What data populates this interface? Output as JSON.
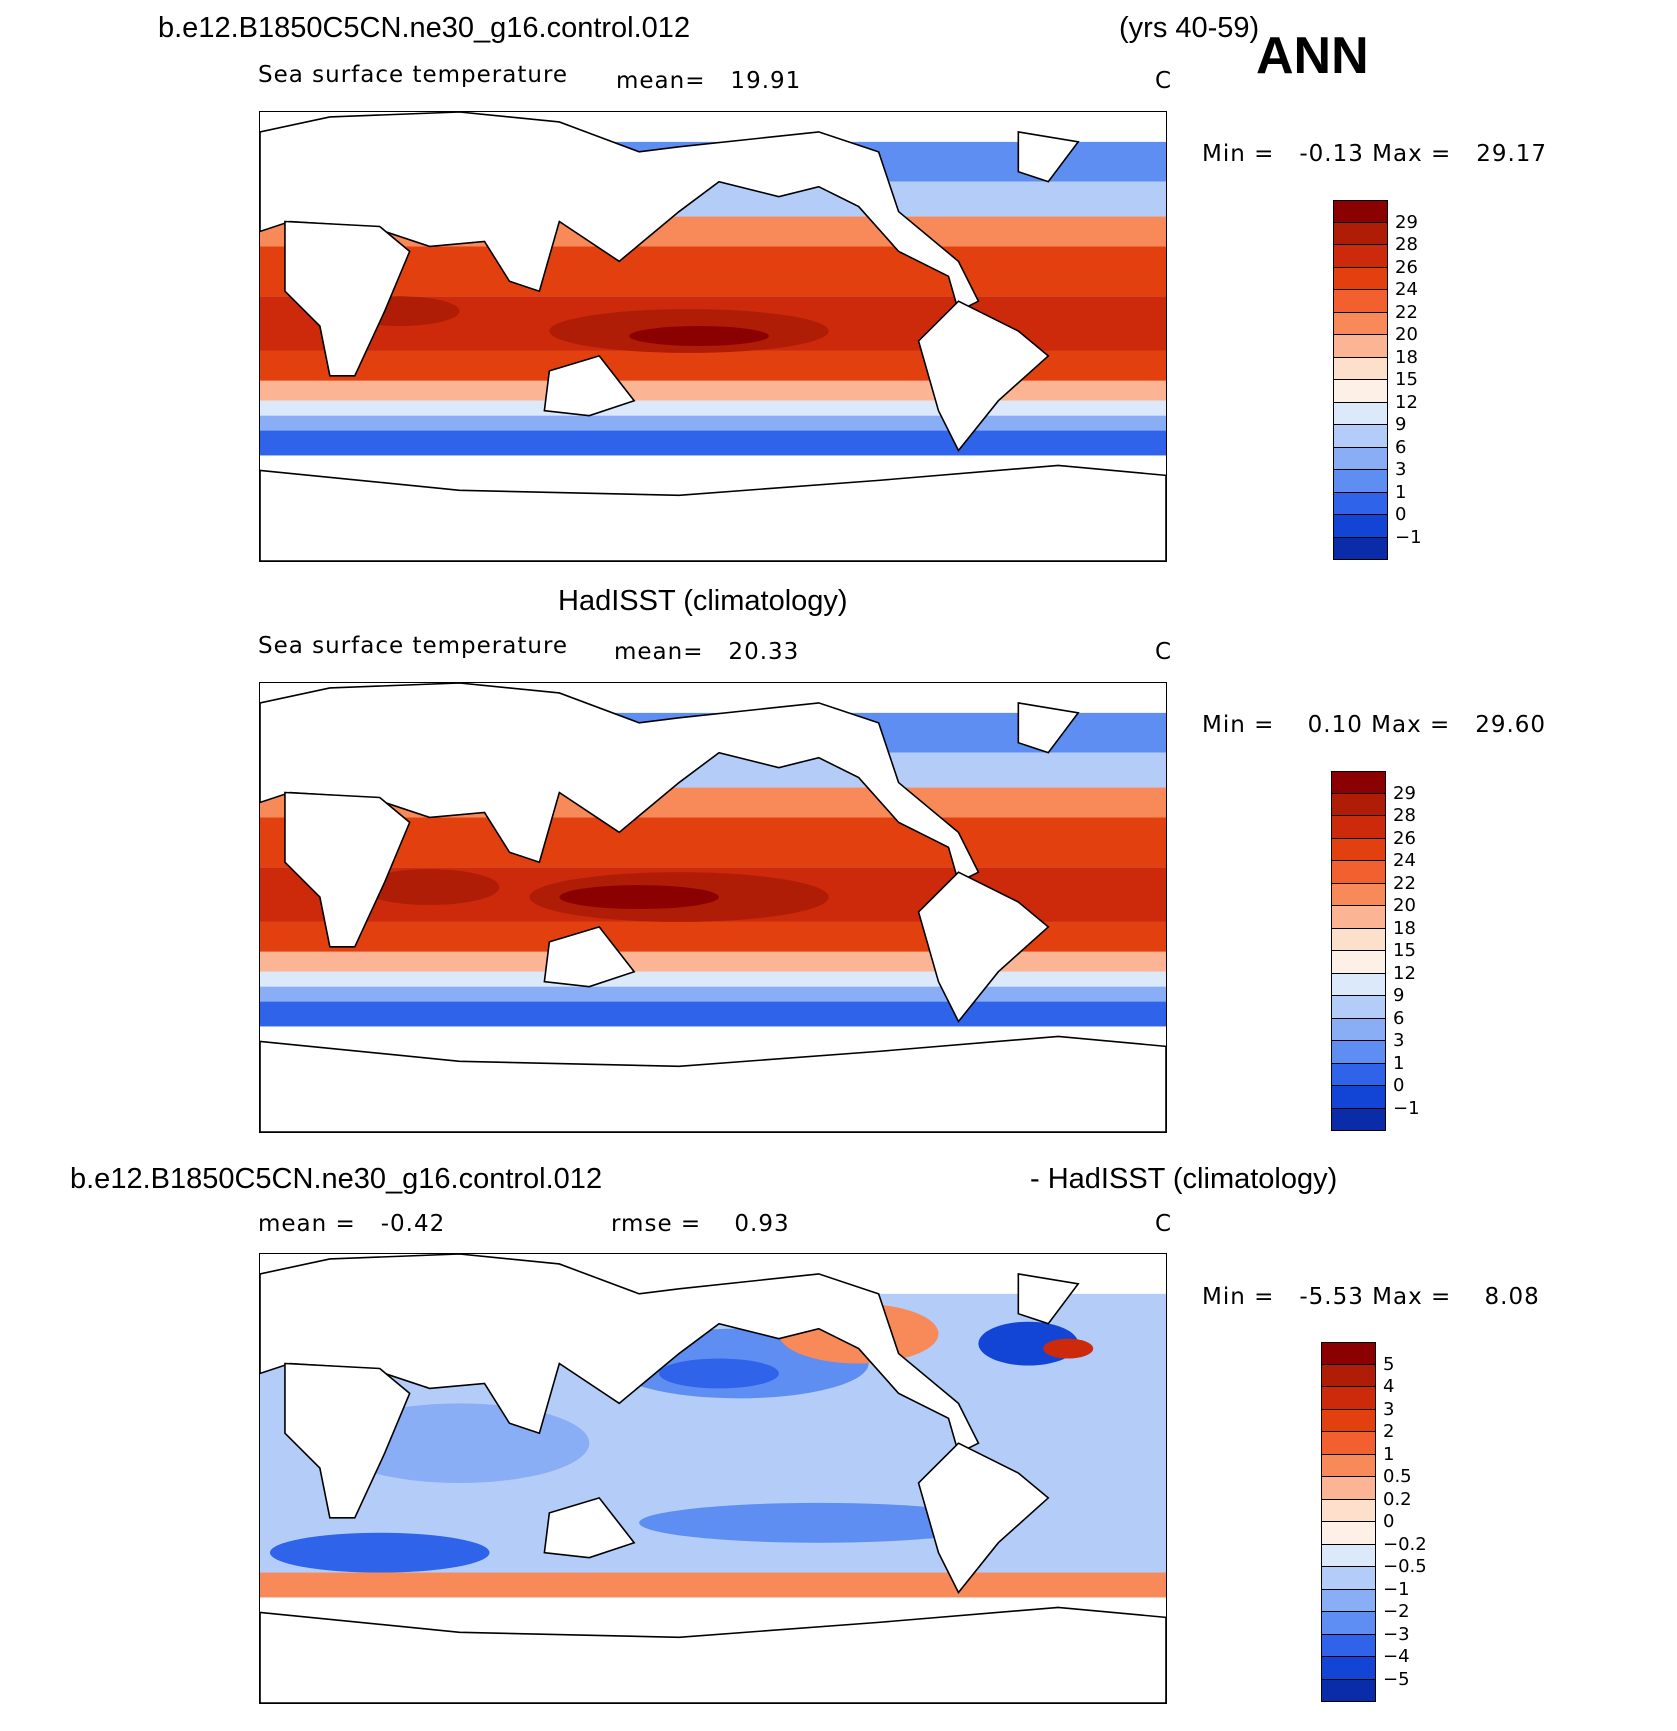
{
  "header": {
    "case_name": "b.e12.B1850C5CN.ne30_g16.control.012",
    "years": "(yrs 40-59)",
    "season": "ANN"
  },
  "panels": [
    {
      "id": "model",
      "title": "",
      "variable": "Sea surface temperature",
      "stat_line": "mean=   19.91",
      "units": "C",
      "minmax": "Min =   -0.13 Max =   29.17",
      "colorbar_labels": [
        "29",
        "28",
        "26",
        "24",
        "22",
        "20",
        "18",
        "15",
        "12",
        "9",
        "6",
        "3",
        "1",
        "0",
        "-1"
      ],
      "colorbar_colors": [
        "#8b0000",
        "#b01d06",
        "#cc2a0a",
        "#e3400f",
        "#f26030",
        "#f88a5a",
        "#fbb494",
        "#fde0cc",
        "#fdf0e6",
        "#dbe9fa",
        "#b3cdf8",
        "#8aaef5",
        "#5e8ef2",
        "#2f63ea",
        "#1245d6",
        "#0a2ca8"
      ]
    },
    {
      "id": "obs",
      "title": "HadISST (climatology)",
      "variable": "Sea surface temperature",
      "stat_line": "mean=   20.33",
      "units": "C",
      "minmax": "Min =    0.10 Max =   29.60",
      "colorbar_labels": [
        "29",
        "28",
        "26",
        "24",
        "22",
        "20",
        "18",
        "15",
        "12",
        "9",
        "6",
        "3",
        "1",
        "0",
        "-1"
      ],
      "colorbar_colors": [
        "#8b0000",
        "#b01d06",
        "#cc2a0a",
        "#e3400f",
        "#f26030",
        "#f88a5a",
        "#fbb494",
        "#fde0cc",
        "#fdf0e6",
        "#dbe9fa",
        "#b3cdf8",
        "#8aaef5",
        "#5e8ef2",
        "#2f63ea",
        "#1245d6",
        "#0a2ca8"
      ]
    },
    {
      "id": "diff",
      "title_left": "b.e12.B1850C5CN.ne30_g16.control.012",
      "title_right": "- HadISST (climatology)",
      "stat_mean": "mean =   -0.42",
      "stat_rmse": "rmse =    0.93",
      "units": "C",
      "minmax": "Min =   -5.53 Max =    8.08",
      "colorbar_labels": [
        "5",
        "4",
        "3",
        "2",
        "1",
        "0.5",
        "0.2",
        "0",
        "-0.2",
        "-0.5",
        "-1",
        "-2",
        "-3",
        "-4",
        "-5"
      ],
      "colorbar_colors": [
        "#8b0000",
        "#b01d06",
        "#cc2a0a",
        "#e3400f",
        "#f26030",
        "#f88a5a",
        "#fbb494",
        "#fde0cc",
        "#fdf0e6",
        "#dbe9fa",
        "#b3cdf8",
        "#8aaef5",
        "#5e8ef2",
        "#2f63ea",
        "#1245d6",
        "#0a2ca8"
      ]
    }
  ]
}
